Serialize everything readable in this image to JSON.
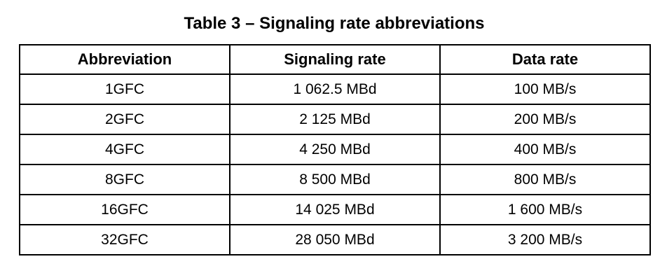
{
  "title": "Table 3 – Signaling rate abbreviations",
  "table": {
    "columns": [
      "Abbreviation",
      "Signaling rate",
      "Data rate"
    ],
    "rows": [
      [
        "1GFC",
        "1 062.5 MBd",
        "100 MB/s"
      ],
      [
        "2GFC",
        "2 125 MBd",
        "200 MB/s"
      ],
      [
        "4GFC",
        "4 250 MBd",
        "400 MB/s"
      ],
      [
        "8GFC",
        "8 500 MBd",
        "800 MB/s"
      ],
      [
        "16GFC",
        "14 025 MBd",
        "1 600 MB/s"
      ],
      [
        "32GFC",
        "28 050 MBd",
        "3 200 MB/s"
      ]
    ]
  },
  "colors": {
    "border": "#000000",
    "text": "#000000",
    "background": "#ffffff"
  }
}
